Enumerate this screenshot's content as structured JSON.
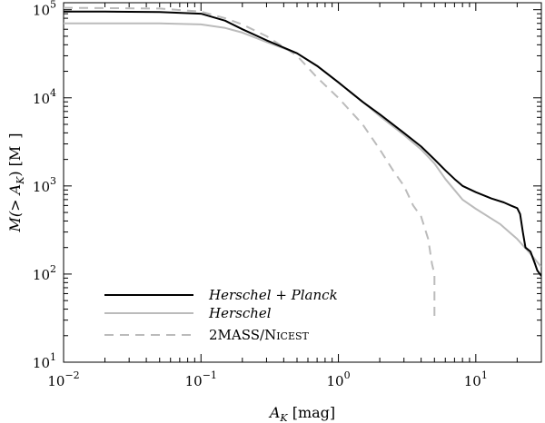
{
  "chart_data": {
    "type": "line",
    "title": "",
    "xlabel": {
      "main": "A",
      "sub": "K",
      "rest": " [mag]"
    },
    "ylabel": {
      "pre": "M(> A",
      "sub": "K",
      "post": ") [M",
      "tail": "]"
    },
    "x_scale": "log",
    "y_scale": "log",
    "xlim": [
      0.01,
      30
    ],
    "ylim": [
      10,
      120000
    ],
    "x_ticks": [
      {
        "value": 0.01,
        "base": "10",
        "exp": "−2"
      },
      {
        "value": 0.1,
        "base": "10",
        "exp": "−1"
      },
      {
        "value": 1,
        "base": "10",
        "exp": "0"
      },
      {
        "value": 10,
        "base": "10",
        "exp": "1"
      }
    ],
    "y_ticks": [
      {
        "value": 10,
        "base": "10",
        "exp": "1"
      },
      {
        "value": 100,
        "base": "10",
        "exp": "2"
      },
      {
        "value": 1000,
        "base": "10",
        "exp": "3"
      },
      {
        "value": 10000,
        "base": "10",
        "exp": "4"
      },
      {
        "value": 100000,
        "base": "10",
        "exp": "5"
      }
    ],
    "grid": false,
    "legend_position": "lower-left",
    "series": [
      {
        "name": "Herschel + Planck",
        "color": "#000000",
        "style": "solid",
        "points": [
          [
            0.01,
            95000
          ],
          [
            0.02,
            95000
          ],
          [
            0.05,
            94000
          ],
          [
            0.1,
            90000
          ],
          [
            0.15,
            75000
          ],
          [
            0.2,
            60000
          ],
          [
            0.3,
            45000
          ],
          [
            0.5,
            32000
          ],
          [
            0.7,
            23000
          ],
          [
            1.0,
            15000
          ],
          [
            1.5,
            9000
          ],
          [
            2.0,
            6500
          ],
          [
            3.0,
            4000
          ],
          [
            4.0,
            2800
          ],
          [
            5.0,
            2000
          ],
          [
            6.0,
            1500
          ],
          [
            7.0,
            1200
          ],
          [
            8.0,
            1000
          ],
          [
            10.0,
            850
          ],
          [
            13.0,
            720
          ],
          [
            16.0,
            650
          ],
          [
            18.0,
            600
          ],
          [
            20.0,
            560
          ],
          [
            21.0,
            480
          ],
          [
            22.0,
            300
          ],
          [
            23.0,
            200
          ],
          [
            25.0,
            180
          ],
          [
            27.0,
            130
          ],
          [
            28.0,
            110
          ],
          [
            30.0,
            95
          ]
        ]
      },
      {
        "name": "Herschel",
        "color": "#bbbbbb",
        "style": "solid",
        "points": [
          [
            0.01,
            70000
          ],
          [
            0.05,
            70000
          ],
          [
            0.1,
            68000
          ],
          [
            0.15,
            62000
          ],
          [
            0.2,
            55000
          ],
          [
            0.3,
            43000
          ],
          [
            0.5,
            32000
          ],
          [
            0.7,
            23000
          ],
          [
            1.0,
            15000
          ],
          [
            1.5,
            9000
          ],
          [
            2.0,
            6200
          ],
          [
            3.0,
            3800
          ],
          [
            4.0,
            2600
          ],
          [
            5.0,
            1800
          ],
          [
            6.0,
            1200
          ],
          [
            7.0,
            900
          ],
          [
            8.0,
            700
          ],
          [
            10.0,
            550
          ],
          [
            15.0,
            370
          ],
          [
            20.0,
            250
          ],
          [
            25.0,
            170
          ],
          [
            30.0,
            120
          ]
        ]
      },
      {
        "name": "2MASS/NICEST",
        "color": "#bbbbbb",
        "style": "dashed",
        "points": [
          [
            0.01,
            105000
          ],
          [
            0.05,
            103000
          ],
          [
            0.1,
            95000
          ],
          [
            0.15,
            80000
          ],
          [
            0.2,
            68000
          ],
          [
            0.3,
            50000
          ],
          [
            0.5,
            30000
          ],
          [
            0.7,
            17000
          ],
          [
            1.0,
            10000
          ],
          [
            1.5,
            5000
          ],
          [
            2.0,
            2600
          ],
          [
            2.5,
            1500
          ],
          [
            3.0,
            1000
          ],
          [
            3.5,
            600
          ],
          [
            4.0,
            450
          ],
          [
            4.5,
            250
          ],
          [
            4.8,
            130
          ],
          [
            5.0,
            100
          ],
          [
            5.0,
            30
          ]
        ]
      }
    ]
  }
}
